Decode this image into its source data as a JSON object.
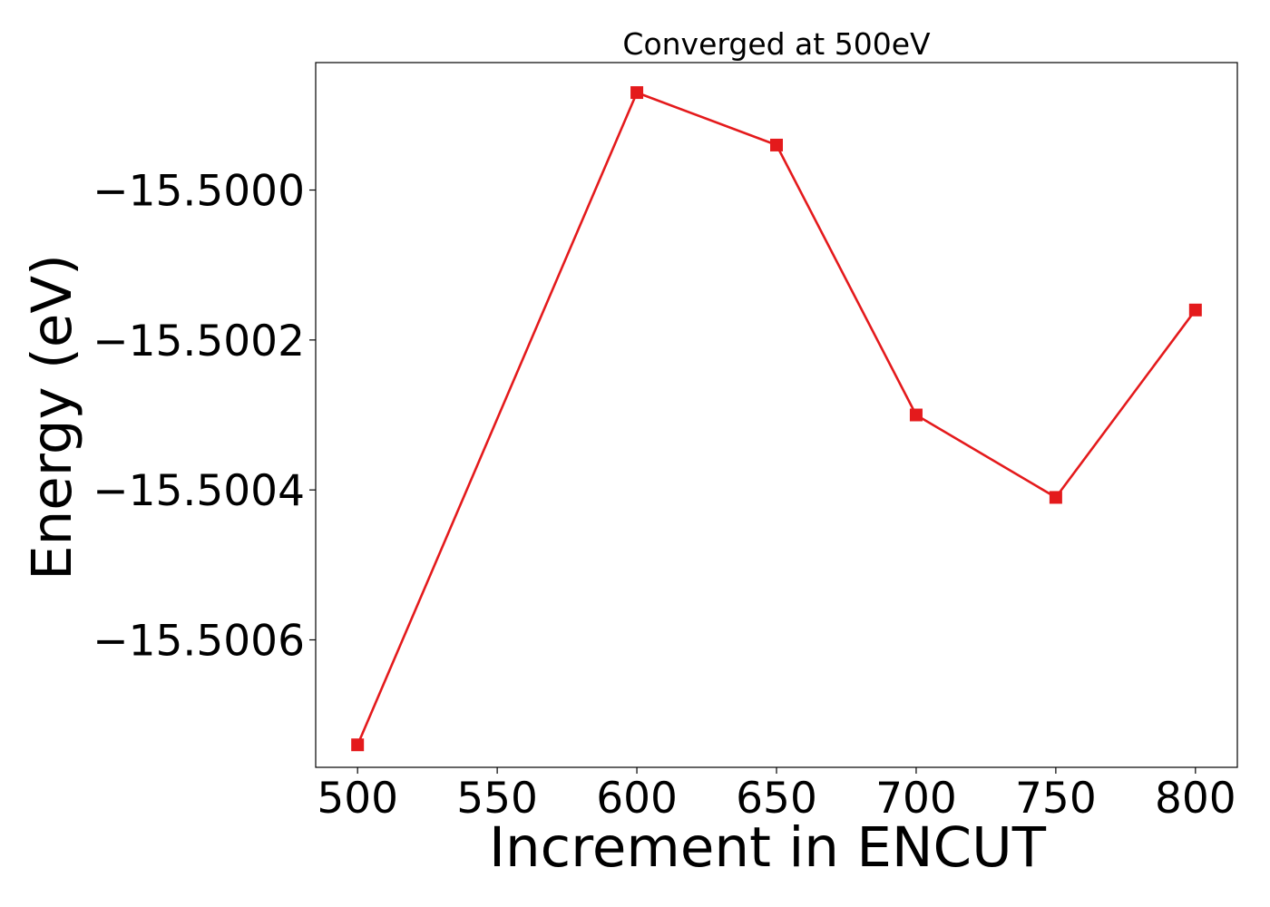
{
  "chart_data": {
    "type": "line",
    "title": "Converged at 500eV",
    "xlabel": "Increment in ENCUT",
    "ylabel": "Energy (eV)",
    "x": [
      500,
      600,
      650,
      700,
      750,
      800
    ],
    "series": [
      {
        "values": [
          -15.50074,
          -15.49987,
          -15.49994,
          -15.5003,
          -15.50041,
          -15.50016
        ],
        "color": "#e41a1c",
        "marker": "square"
      }
    ],
    "xticks": [
      500,
      550,
      600,
      650,
      700,
      750,
      800
    ],
    "xtick_labels": [
      "500",
      "550",
      "600",
      "650",
      "700",
      "750",
      "800"
    ],
    "yticks": [
      -15.5,
      -15.5002,
      -15.5004,
      -15.5006
    ],
    "ytick_labels": [
      "−15.5000",
      "−15.5002",
      "−15.5004",
      "−15.5006"
    ],
    "xlim": [
      485,
      815
    ],
    "ylim": [
      -15.50077,
      -15.49983
    ],
    "grid": false,
    "legend": "none"
  }
}
